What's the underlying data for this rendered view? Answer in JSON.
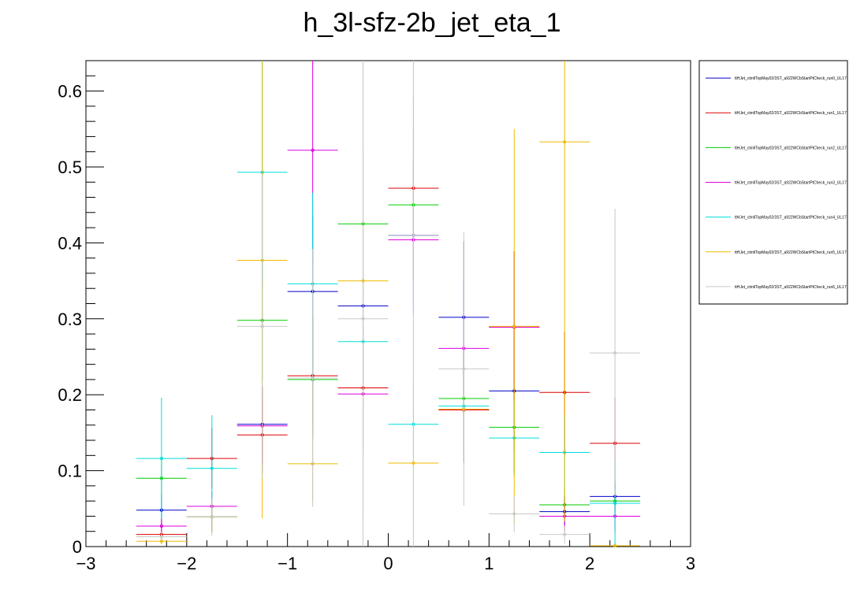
{
  "chart_data": {
    "type": "scatter",
    "title": "h_3l-sfz-2b_jet_eta_1",
    "xlabel": "",
    "ylabel": "",
    "xlim": [
      -3,
      3
    ],
    "ylim": [
      0,
      0.64
    ],
    "grid": false,
    "legend_position": "top-right",
    "x_ticks": [
      {
        "value": -3,
        "label": "−3"
      },
      {
        "value": -2,
        "label": "−2"
      },
      {
        "value": -1,
        "label": "−1"
      },
      {
        "value": 0,
        "label": "0"
      },
      {
        "value": 1,
        "label": "1"
      },
      {
        "value": 2,
        "label": "2"
      },
      {
        "value": 3,
        "label": "3"
      }
    ],
    "y_ticks": [
      {
        "value": 0,
        "label": "0"
      },
      {
        "value": 0.1,
        "label": "0.1"
      },
      {
        "value": 0.2,
        "label": "0.2"
      },
      {
        "value": 0.3,
        "label": "0.3"
      },
      {
        "value": 0.4,
        "label": "0.4"
      },
      {
        "value": 0.5,
        "label": "0.5"
      },
      {
        "value": 0.6,
        "label": "0.6"
      }
    ],
    "bin_edges": [
      -2.5,
      -2.0,
      -1.5,
      -1.0,
      -0.5,
      0.0,
      0.5,
      1.0,
      1.5,
      2.0,
      2.5
    ],
    "series": [
      {
        "name": "ttHJet_ctmllTopMay02/3ST_a922WCbStartPtCheck_run0_UL17",
        "color": "#0000cc",
        "values": [
          0.048,
          0.039,
          0.161,
          0.336,
          0.317,
          0.41,
          0.302,
          0.205,
          0.046,
          0.066
        ],
        "errors": [
          0.02,
          0.02,
          0.05,
          0.1,
          0.1,
          0.1,
          0.1,
          0.08,
          0.02,
          0.02
        ]
      },
      {
        "name": "ttHJet_ctmllTopMay02/3ST_a922WCbStartPtCheck_run1_UL17",
        "color": "#dd0000",
        "values": [
          0.016,
          0.116,
          0.147,
          0.225,
          0.209,
          0.472,
          0.18,
          0.289,
          0.203,
          0.136
        ],
        "errors": [
          0.01,
          0.04,
          0.05,
          0.08,
          0.08,
          0.12,
          0.07,
          0.1,
          0.08,
          0.06
        ]
      },
      {
        "name": "ttHJet_ctmllTopMay02/3ST_a922WCbStartPtCheck_run2_UL17",
        "color": "#00cc00",
        "values": [
          0.09,
          0.039,
          0.298,
          0.22,
          0.425,
          0.45,
          0.195,
          0.157,
          0.055,
          0.06
        ],
        "errors": [
          0.03,
          0.02,
          0.08,
          0.08,
          0.1,
          0.1,
          0.07,
          0.06,
          0.02,
          0.02
        ]
      },
      {
        "name": "ttHJet_ctmllTopMay02/3ST_a922WCbStartPtCheck_run3_UL17",
        "color": "#dd00dd",
        "values": [
          0.027,
          0.053,
          0.159,
          0.522,
          0.201,
          0.404,
          0.261,
          0.289,
          0.04,
          0.04
        ],
        "errors": [
          0.01,
          0.02,
          0.05,
          0.15,
          0.08,
          0.1,
          0.09,
          0.1,
          0.02,
          0.02
        ]
      },
      {
        "name": "ttHJet_ctmllTopMay02/3ST_a922WCbStartPtCheck_run4_UL17",
        "color": "#00dddd",
        "values": [
          0.116,
          0.103,
          0.493,
          0.346,
          0.27,
          0.161,
          0.185,
          0.143,
          0.124,
          0.057
        ],
        "errors": [
          0.08,
          0.07,
          0.15,
          0.12,
          0.09,
          0.06,
          0.07,
          0.05,
          0.05,
          0.06
        ]
      },
      {
        "name": "ttHJet_ctmllTopMay02/3ST_a922WCbStartPtCheck_run5_UL17",
        "color": "#eebb00",
        "values": [
          0.007,
          0.039,
          0.377,
          0.109,
          0.35,
          0.11,
          0.181,
          0.29,
          0.533,
          0.001
        ],
        "errors": [
          0.004,
          0.02,
          0.34,
          0.05,
          0.31,
          0.07,
          0.06,
          0.26,
          0.5,
          0.001
        ]
      },
      {
        "name": "ttHJet_ctmllTopMay02/3ST_a922WCbStartPtCheck_run6_UL17",
        "color": "#c8c8c8",
        "values": [
          0.013,
          0.039,
          0.29,
          0.222,
          0.3,
          0.41,
          0.234,
          0.043,
          0.016,
          0.255
        ],
        "errors": [
          0.006,
          0.025,
          0.2,
          0.17,
          0.6,
          0.7,
          0.18,
          0.024,
          0.012,
          0.19
        ]
      }
    ]
  }
}
